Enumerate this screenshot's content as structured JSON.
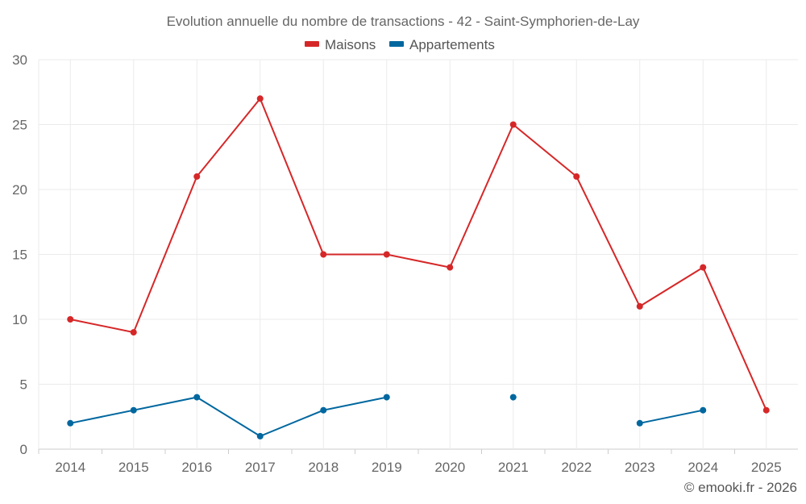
{
  "chart_data": {
    "type": "line",
    "title": "Evolution annuelle du nombre de transactions - 42 - Saint-Symphorien-de-Lay",
    "categories": [
      "2014",
      "2015",
      "2016",
      "2017",
      "2018",
      "2019",
      "2020",
      "2021",
      "2022",
      "2023",
      "2024",
      "2025"
    ],
    "series": [
      {
        "name": "Maisons",
        "color": "#d62728",
        "values": [
          10,
          9,
          21,
          27,
          15,
          15,
          14,
          25,
          21,
          11,
          14,
          3
        ]
      },
      {
        "name": "Appartements",
        "color": "#00679f",
        "values": [
          2,
          3,
          4,
          1,
          3,
          4,
          null,
          4,
          null,
          2,
          3,
          null
        ]
      }
    ],
    "ylim": [
      0,
      30
    ],
    "yticks": [
      0,
      5,
      10,
      15,
      20,
      25,
      30
    ],
    "grid": true,
    "legend": "top-center",
    "xlabel": "",
    "ylabel": ""
  },
  "credit": "© emooki.fr - 2026"
}
